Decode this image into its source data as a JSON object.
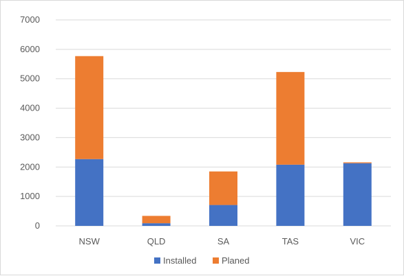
{
  "chart_data": {
    "type": "bar",
    "stacked": true,
    "categories": [
      "NSW",
      "QLD",
      "SA",
      "TAS",
      "VIC"
    ],
    "series": [
      {
        "name": "Installed",
        "color": "#4472c4",
        "values": [
          2270,
          90,
          710,
          2080,
          2130
        ]
      },
      {
        "name": "Planed",
        "color": "#ed7d31",
        "values": [
          3500,
          250,
          1140,
          3150,
          30
        ]
      }
    ],
    "ylim": [
      0,
      7000
    ],
    "yticks": [
      "0",
      "1000",
      "2000",
      "3000",
      "4000",
      "5000",
      "6000",
      "7000"
    ],
    "title": "",
    "xlabel": "",
    "ylabel": "",
    "grid": true,
    "legend_position": "bottom"
  }
}
